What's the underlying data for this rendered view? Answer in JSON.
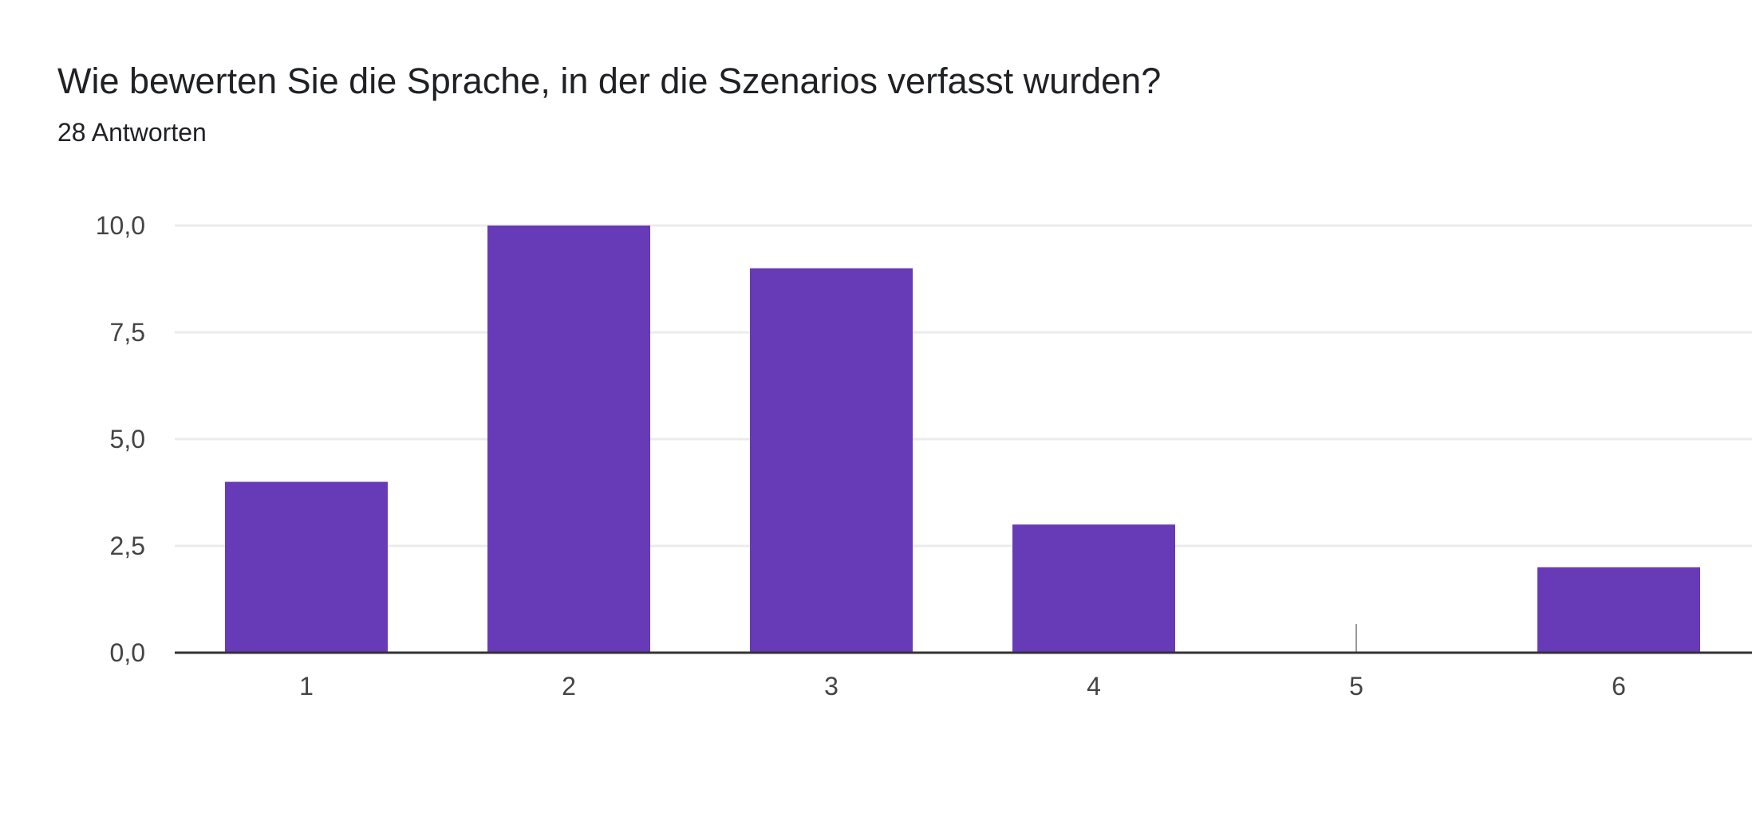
{
  "header": {
    "title": "Wie bewerten Sie die Sprache, in der die Szenarios verfasst wurden?",
    "response_count": "28 Antworten"
  },
  "colors": {
    "bar": "#673ab7",
    "grid": "#ebebeb",
    "axis": "#333333",
    "zero_marker": "#999999"
  },
  "chart_data": {
    "type": "bar",
    "title": "Wie bewerten Sie die Sprache, in der die Szenarios verfasst wurden?",
    "categories": [
      "1",
      "2",
      "3",
      "4",
      "5",
      "6"
    ],
    "values": [
      4,
      10,
      9,
      3,
      0,
      2
    ],
    "ylim": [
      0,
      10
    ],
    "yticks": [
      0,
      2.5,
      5,
      7.5,
      10
    ],
    "ytick_labels": [
      "0,0",
      "2,5",
      "5,0",
      "7,5",
      "10,0"
    ],
    "xlabel": "",
    "ylabel": "",
    "grid": true,
    "legend": "none"
  }
}
